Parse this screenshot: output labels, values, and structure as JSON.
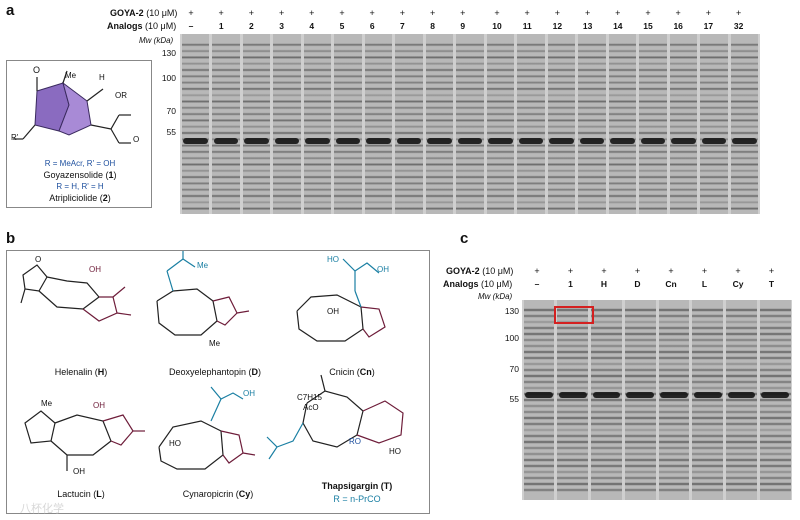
{
  "panel_a": {
    "letter": "a",
    "goya_row_label": "GOYA-2",
    "goya_unit": "(10 μM)",
    "analogs_row_label": "Analogs",
    "analogs_unit": "(10 μM)",
    "mw_label": "Mw (kDa)",
    "mw_ticks": [
      "130",
      "100",
      "70",
      "55"
    ],
    "lanes": [
      "–",
      "1",
      "2",
      "3",
      "4",
      "5",
      "6",
      "7",
      "8",
      "9",
      "10",
      "11",
      "12",
      "13",
      "14",
      "15",
      "16",
      "17",
      "32"
    ],
    "plus_symbol": "+",
    "structure": {
      "r_line1": "R = MeAcr, R' = OH",
      "name1": "Goyazensolide (",
      "num1": "1",
      "r_line2": "R = H, R' = H",
      "name2": "Atripliciolide (",
      "num2": "2",
      "close_paren": ")",
      "label_me": "Me",
      "label_h": "H",
      "label_or": "OR",
      "label_rp": "R'",
      "label_o": "O"
    }
  },
  "panel_b": {
    "letter": "b",
    "compounds": [
      {
        "name": "Helenalin (",
        "abbr": "H",
        "close": ")"
      },
      {
        "name": "Deoxyelephantopin (",
        "abbr": "D",
        "close": ")"
      },
      {
        "name": "Cnicin (",
        "abbr": "Cn",
        "close": ")"
      },
      {
        "name": "Lactucin (",
        "abbr": "L",
        "close": ")"
      },
      {
        "name": "Cynaropicrin (",
        "abbr": "Cy",
        "close": ")"
      },
      {
        "name": "Thapsigargin (T)",
        "abbr": "",
        "close": ""
      }
    ],
    "thapsigargin_r": "R = n-PrCO",
    "labels": {
      "oh": "OH",
      "ho": "HO",
      "me": "Me",
      "h": "H",
      "o": "O",
      "aco": "AcO",
      "c7h15": "C7H15",
      "ro": "RO",
      "ho_h": "HO"
    }
  },
  "panel_c": {
    "letter": "c",
    "goya_row_label": "GOYA-2",
    "goya_unit": "(10 μM)",
    "analogs_row_label": "Analogs",
    "analogs_unit": "(10 μM)",
    "mw_label": "Mw (kDa)",
    "mw_ticks": [
      "130",
      "100",
      "70",
      "55"
    ],
    "lanes": [
      "–",
      "1",
      "H",
      "D",
      "Cn",
      "L",
      "Cy",
      "T"
    ],
    "plus_symbol": "+",
    "highlight_color": "#d42020"
  },
  "watermark": "八杯化学",
  "colors": {
    "purple": "#8a6bc0",
    "blue": "#1d4f9e",
    "teal": "#1a7fa3",
    "maroon": "#6e1d3a"
  }
}
